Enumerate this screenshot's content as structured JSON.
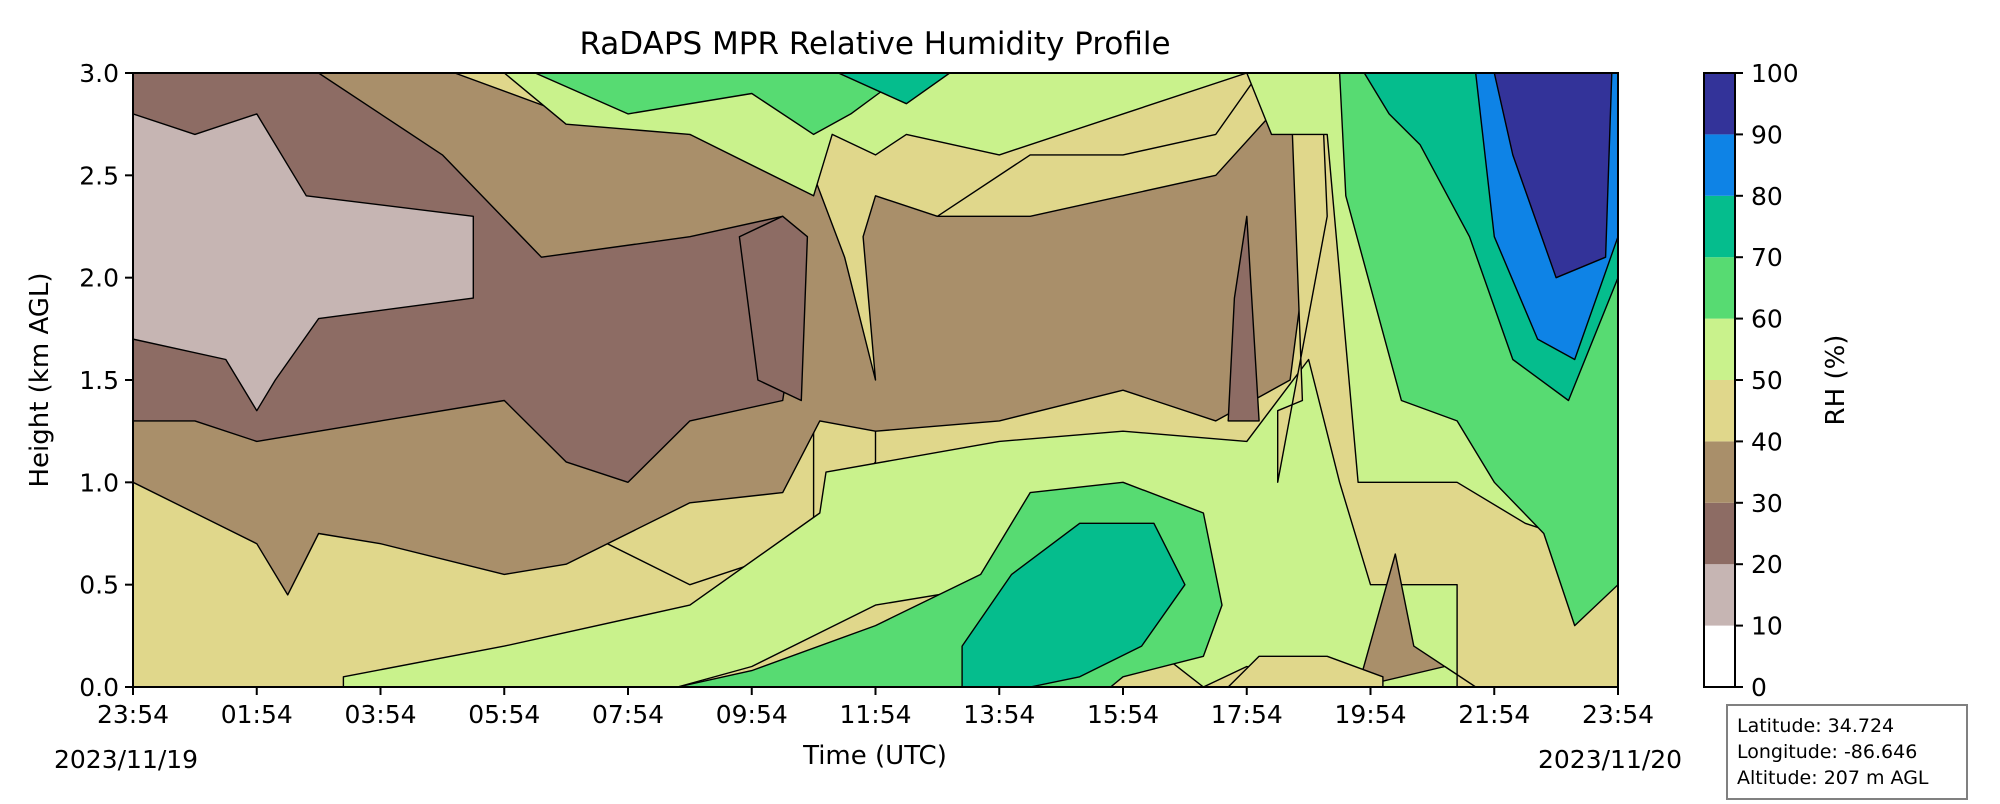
{
  "chart_data": {
    "type": "heatmap",
    "subtype": "filled-contour",
    "title": "RaDAPS MPR Relative Humidity Profile",
    "xlabel": "Time (UTC)",
    "ylabel": "Height (km AGL)",
    "x_tick_labels": [
      "23:54",
      "01:54",
      "03:54",
      "05:54",
      "07:54",
      "09:54",
      "11:54",
      "13:54",
      "15:54",
      "17:54",
      "19:54",
      "21:54",
      "23:54"
    ],
    "x_tick_hours": [
      0,
      2,
      4,
      6,
      8,
      10,
      12,
      14,
      16,
      18,
      20,
      22,
      24
    ],
    "start_date_label": "2023/11/19",
    "end_date_label": "2023/11/20",
    "y_ticks": [
      0.0,
      0.5,
      1.0,
      1.5,
      2.0,
      2.5,
      3.0
    ],
    "y_tick_labels": [
      "0.0",
      "0.5",
      "1.0",
      "1.5",
      "2.0",
      "2.5",
      "3.0"
    ],
    "ylim": [
      0,
      3.0
    ],
    "xlim_hours": [
      0,
      24
    ],
    "colorbar": {
      "label": "RH (%)",
      "levels": [
        0,
        10,
        20,
        30,
        40,
        50,
        60,
        70,
        80,
        90,
        100
      ],
      "level_labels": [
        "0",
        "10",
        "20",
        "30",
        "40",
        "50",
        "60",
        "70",
        "80",
        "90",
        "100"
      ],
      "colors": [
        "#ffffff",
        "#c6b5b3",
        "#8d6c64",
        "#a98f6a",
        "#e0d78b",
        "#c9f28c",
        "#57db72",
        "#05bd8d",
        "#0e83e6",
        "#333399"
      ]
    },
    "regions": [
      {
        "rh_band": [
          40,
          50
        ],
        "polygon": [
          [
            0,
            0
          ],
          [
            0,
            1.0
          ],
          [
            3,
            1.0
          ],
          [
            6,
            0.95
          ],
          [
            9,
            0.5
          ],
          [
            11,
            0.7
          ],
          [
            12,
            1.1
          ],
          [
            12,
            1.3
          ],
          [
            11,
            1.3
          ],
          [
            11,
            0.4
          ],
          [
            10,
            0.3
          ],
          [
            9,
            0.2
          ],
          [
            8,
            0.1
          ],
          [
            6,
            0.05
          ],
          [
            4,
            0.03
          ],
          [
            3.4,
            0
          ]
        ]
      },
      {
        "rh_band": [
          50,
          60
        ],
        "polygon": [
          [
            3.4,
            0
          ],
          [
            3.4,
            0.05
          ],
          [
            6,
            0.2
          ],
          [
            9,
            0.4
          ],
          [
            11.1,
            0.85
          ],
          [
            11.2,
            1.05
          ],
          [
            14,
            1.2
          ],
          [
            16,
            1.25
          ],
          [
            18,
            1.2
          ],
          [
            19,
            1.6
          ],
          [
            19.5,
            1.0
          ],
          [
            20,
            0.5
          ],
          [
            21.4,
            0.5
          ],
          [
            21.4,
            0
          ],
          [
            19.6,
            0
          ],
          [
            18,
            0.1
          ],
          [
            17.3,
            0
          ],
          [
            15.6,
            0.4
          ],
          [
            14,
            0.5
          ],
          [
            12,
            0.4
          ],
          [
            10,
            0.1
          ],
          [
            8.8,
            0
          ]
        ]
      },
      {
        "rh_band": [
          60,
          70
        ],
        "polygon": [
          [
            8.8,
            0
          ],
          [
            10,
            0.08
          ],
          [
            12,
            0.3
          ],
          [
            13.7,
            0.55
          ],
          [
            14.5,
            0.95
          ],
          [
            16,
            1.0
          ],
          [
            17.3,
            0.85
          ],
          [
            17.6,
            0.4
          ],
          [
            17.3,
            0.15
          ],
          [
            16,
            0.05
          ],
          [
            15.8,
            0
          ]
        ]
      },
      {
        "rh_band": [
          70,
          80
        ],
        "polygon": [
          [
            13.4,
            0
          ],
          [
            13.4,
            0.2
          ],
          [
            14.2,
            0.55
          ],
          [
            15.3,
            0.8
          ],
          [
            16.5,
            0.8
          ],
          [
            17.0,
            0.5
          ],
          [
            16.3,
            0.2
          ],
          [
            15.3,
            0.05
          ],
          [
            14.5,
            0
          ]
        ]
      },
      {
        "rh_band": [
          30,
          40
        ],
        "polygon": [
          [
            19.8,
            0
          ],
          [
            20.4,
            0.65
          ],
          [
            20.7,
            0.2
          ],
          [
            21.7,
            0
          ],
          [
            21.2,
            0.1
          ]
        ]
      },
      {
        "rh_band": [
          40,
          50
        ],
        "polygon": [
          [
            17.7,
            0
          ],
          [
            18.2,
            0.15
          ],
          [
            19.3,
            0.15
          ],
          [
            20.2,
            0.05
          ],
          [
            20.2,
            0
          ]
        ]
      },
      {
        "rh_band": [
          30,
          40
        ],
        "polygon": [
          [
            0,
            1.0
          ],
          [
            0,
            3.0
          ],
          [
            9,
            3.0
          ],
          [
            11,
            2.6
          ],
          [
            12,
            2.5
          ],
          [
            13,
            2.3
          ],
          [
            14.5,
            2.3
          ],
          [
            17.5,
            2.5
          ],
          [
            18.7,
            2.9
          ],
          [
            19.0,
            2.2
          ],
          [
            18.7,
            1.5
          ],
          [
            17.5,
            1.3
          ],
          [
            16,
            1.45
          ],
          [
            14,
            1.3
          ],
          [
            12,
            1.25
          ],
          [
            11.1,
            1.3
          ],
          [
            10.5,
            0.95
          ],
          [
            9,
            0.9
          ],
          [
            7,
            0.6
          ],
          [
            6,
            0.55
          ],
          [
            4,
            0.7
          ],
          [
            3,
            0.75
          ],
          [
            2.5,
            0.45
          ],
          [
            2,
            0.7
          ],
          [
            1,
            0.85
          ]
        ]
      },
      {
        "rh_band": [
          40,
          50
        ],
        "polygon": [
          [
            5.2,
            3.0
          ],
          [
            7,
            2.8
          ],
          [
            9,
            2.7
          ],
          [
            11,
            2.5
          ],
          [
            11.5,
            2.1
          ],
          [
            12,
            1.5
          ],
          [
            11.8,
            2.2
          ],
          [
            12,
            2.4
          ],
          [
            13,
            2.3
          ],
          [
            14.5,
            2.6
          ],
          [
            16,
            2.6
          ],
          [
            17.5,
            2.7
          ],
          [
            18.2,
            3.0
          ],
          [
            18.7,
            3.0
          ],
          [
            18.9,
            1.4
          ],
          [
            18.5,
            1.35
          ],
          [
            18.5,
            1.0
          ],
          [
            19.3,
            2.3
          ],
          [
            19.2,
            3.0
          ]
        ]
      },
      {
        "rh_band": [
          20,
          30
        ],
        "polygon": [
          [
            0,
            1.3
          ],
          [
            0,
            3.0
          ],
          [
            3,
            3.0
          ],
          [
            5,
            2.6
          ],
          [
            6.6,
            2.1
          ],
          [
            9,
            2.2
          ],
          [
            10.5,
            2.3
          ],
          [
            10.8,
            2.0
          ],
          [
            10.5,
            1.4
          ],
          [
            9,
            1.3
          ],
          [
            8,
            1.0
          ],
          [
            7,
            1.1
          ],
          [
            6,
            1.4
          ],
          [
            4,
            1.3
          ],
          [
            3,
            1.25
          ],
          [
            2,
            1.2
          ],
          [
            1,
            1.3
          ]
        ]
      },
      {
        "rh_band": [
          10,
          20
        ],
        "polygon": [
          [
            0,
            1.7
          ],
          [
            0,
            2.8
          ],
          [
            1,
            2.7
          ],
          [
            2.0,
            2.8
          ],
          [
            2.8,
            2.4
          ],
          [
            5.5,
            2.3
          ],
          [
            5.5,
            1.9
          ],
          [
            3,
            1.8
          ],
          [
            2.3,
            1.5
          ],
          [
            2,
            1.35
          ],
          [
            1.5,
            1.6
          ]
        ]
      },
      {
        "rh_band": [
          50,
          60
        ],
        "polygon": [
          [
            6,
            3.0
          ],
          [
            7,
            2.75
          ],
          [
            9,
            2.7
          ],
          [
            11,
            2.4
          ],
          [
            11.3,
            2.7
          ],
          [
            12,
            2.6
          ],
          [
            12.5,
            2.7
          ],
          [
            14,
            2.6
          ],
          [
            16,
            2.8
          ],
          [
            18,
            3.0
          ],
          [
            18.4,
            2.7
          ],
          [
            19.3,
            2.7
          ],
          [
            19.8,
            1.0
          ],
          [
            21.4,
            1.0
          ],
          [
            22.5,
            0.8
          ],
          [
            23.5,
            0.7
          ],
          [
            23.5,
            3.0
          ]
        ]
      },
      {
        "rh_band": [
          60,
          70
        ],
        "polygon": [
          [
            6.5,
            3.0
          ],
          [
            8,
            2.8
          ],
          [
            10,
            2.9
          ],
          [
            11,
            2.7
          ],
          [
            11.6,
            2.8
          ],
          [
            12.5,
            3.0
          ],
          [
            19.5,
            3.0
          ],
          [
            19.6,
            2.4
          ],
          [
            20.5,
            1.4
          ],
          [
            21.4,
            1.3
          ],
          [
            22,
            1.0
          ],
          [
            22.8,
            0.75
          ],
          [
            23.3,
            0.3
          ],
          [
            24,
            0.5
          ],
          [
            24,
            3.0
          ]
        ]
      },
      {
        "rh_band": [
          70,
          80
        ],
        "polygon": [
          [
            11.4,
            3.0
          ],
          [
            12.5,
            2.85
          ],
          [
            13.2,
            3.0
          ]
        ]
      },
      {
        "rh_band": [
          70,
          80
        ],
        "polygon": [
          [
            19.9,
            3.0
          ],
          [
            20.3,
            2.8
          ],
          [
            20.8,
            2.65
          ],
          [
            21.6,
            2.2
          ],
          [
            22.3,
            1.6
          ],
          [
            23.2,
            1.4
          ],
          [
            24,
            2.0
          ],
          [
            24,
            3.0
          ]
        ]
      },
      {
        "rh_band": [
          80,
          90
        ],
        "polygon": [
          [
            21.7,
            3.0
          ],
          [
            22.0,
            2.2
          ],
          [
            22.7,
            1.7
          ],
          [
            23.3,
            1.6
          ],
          [
            24,
            2.2
          ],
          [
            24,
            3.0
          ]
        ]
      },
      {
        "rh_band": [
          90,
          100
        ],
        "polygon": [
          [
            22.0,
            3.0
          ],
          [
            22.3,
            2.6
          ],
          [
            23.0,
            2.0
          ],
          [
            23.8,
            2.1
          ],
          [
            23.9,
            3.0
          ]
        ]
      },
      {
        "rh_band": [
          20,
          30
        ],
        "polygon": [
          [
            9.8,
            2.2
          ],
          [
            10.1,
            1.5
          ],
          [
            10.8,
            1.4
          ],
          [
            10.9,
            2.2
          ],
          [
            10.5,
            2.3
          ]
        ]
      },
      {
        "rh_band": [
          20,
          30
        ],
        "polygon": [
          [
            17.7,
            1.3
          ],
          [
            17.8,
            1.9
          ],
          [
            18.0,
            2.3
          ],
          [
            18.2,
            1.3
          ]
        ]
      }
    ]
  },
  "info_box": {
    "latitude": "Latitude: 34.724",
    "longitude": "Longitude: -86.646",
    "altitude": "Altitude: 207 m AGL"
  }
}
